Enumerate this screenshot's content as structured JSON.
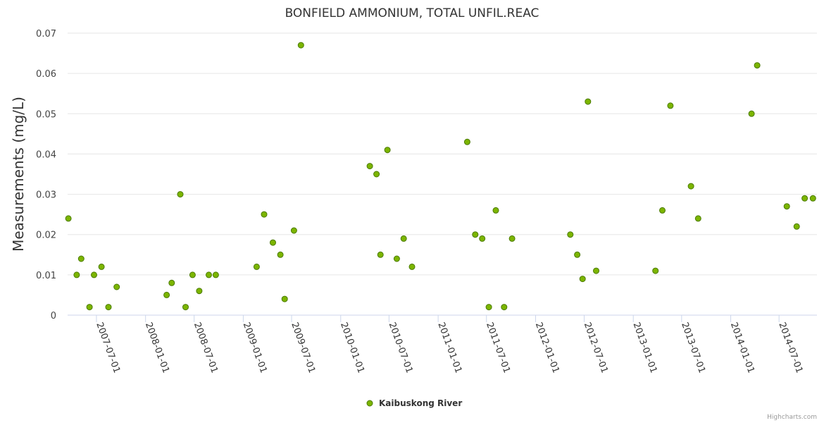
{
  "chart_data": {
    "type": "scatter",
    "title": "BONFIELD AMMONIUM, TOTAL UNFIL.REAC",
    "xlabel": "",
    "ylabel": "Measurements (mg/L)",
    "ylim": [
      0,
      0.07
    ],
    "yticks": [
      "0",
      "0.01",
      "0.02",
      "0.03",
      "0.04",
      "0.05",
      "0.06",
      "0.07"
    ],
    "xlim": [
      "2007-03-15",
      "2014-11-20"
    ],
    "xticks": [
      "2007-07-01",
      "2008-01-01",
      "2008-07-01",
      "2009-01-01",
      "2009-07-01",
      "2010-01-01",
      "2010-07-01",
      "2011-01-01",
      "2011-07-01",
      "2012-01-01",
      "2012-07-01",
      "2013-01-01",
      "2013-07-01",
      "2014-01-01",
      "2014-07-01"
    ],
    "grid": true,
    "legend_position": "bottom-center",
    "series": [
      {
        "name": "Kaibuskong River",
        "color": "#7cb500",
        "points": [
          [
            "2007-03-18",
            0.024
          ],
          [
            "2007-04-18",
            0.01
          ],
          [
            "2007-05-05",
            0.014
          ],
          [
            "2007-06-05",
            0.002
          ],
          [
            "2007-06-22",
            0.01
          ],
          [
            "2007-07-20",
            0.012
          ],
          [
            "2007-08-15",
            0.002
          ],
          [
            "2007-09-15",
            0.007
          ],
          [
            "2008-03-20",
            0.005
          ],
          [
            "2008-04-08",
            0.008
          ],
          [
            "2008-05-10",
            0.03
          ],
          [
            "2008-05-30",
            0.002
          ],
          [
            "2008-06-25",
            0.01
          ],
          [
            "2008-07-20",
            0.006
          ],
          [
            "2008-08-25",
            0.01
          ],
          [
            "2008-09-20",
            0.01
          ],
          [
            "2009-02-20",
            0.012
          ],
          [
            "2009-03-20",
            0.025
          ],
          [
            "2009-04-22",
            0.018
          ],
          [
            "2009-05-20",
            0.015
          ],
          [
            "2009-06-05",
            0.004
          ],
          [
            "2009-07-10",
            0.021
          ],
          [
            "2009-08-05",
            0.067
          ],
          [
            "2010-04-20",
            0.037
          ],
          [
            "2010-05-15",
            0.035
          ],
          [
            "2010-05-30",
            0.015
          ],
          [
            "2010-06-25",
            0.041
          ],
          [
            "2010-07-30",
            0.014
          ],
          [
            "2010-08-25",
            0.019
          ],
          [
            "2010-09-25",
            0.012
          ],
          [
            "2011-04-20",
            0.043
          ],
          [
            "2011-05-20",
            0.02
          ],
          [
            "2011-06-15",
            0.019
          ],
          [
            "2011-07-10",
            0.002
          ],
          [
            "2011-08-05",
            0.026
          ],
          [
            "2011-09-05",
            0.002
          ],
          [
            "2011-10-05",
            0.019
          ],
          [
            "2012-05-10",
            0.02
          ],
          [
            "2012-06-05",
            0.015
          ],
          [
            "2012-06-25",
            0.009
          ],
          [
            "2012-07-15",
            0.053
          ],
          [
            "2012-08-15",
            0.011
          ],
          [
            "2013-03-25",
            0.011
          ],
          [
            "2013-04-20",
            0.026
          ],
          [
            "2013-05-20",
            0.052
          ],
          [
            "2013-08-05",
            0.032
          ],
          [
            "2013-09-01",
            0.024
          ],
          [
            "2014-03-20",
            0.05
          ],
          [
            "2014-04-10",
            0.062
          ],
          [
            "2014-07-30",
            0.027
          ],
          [
            "2014-09-05",
            0.022
          ],
          [
            "2014-10-05",
            0.029
          ],
          [
            "2014-11-05",
            0.029
          ]
        ]
      }
    ]
  },
  "credits": "Highcharts.com"
}
